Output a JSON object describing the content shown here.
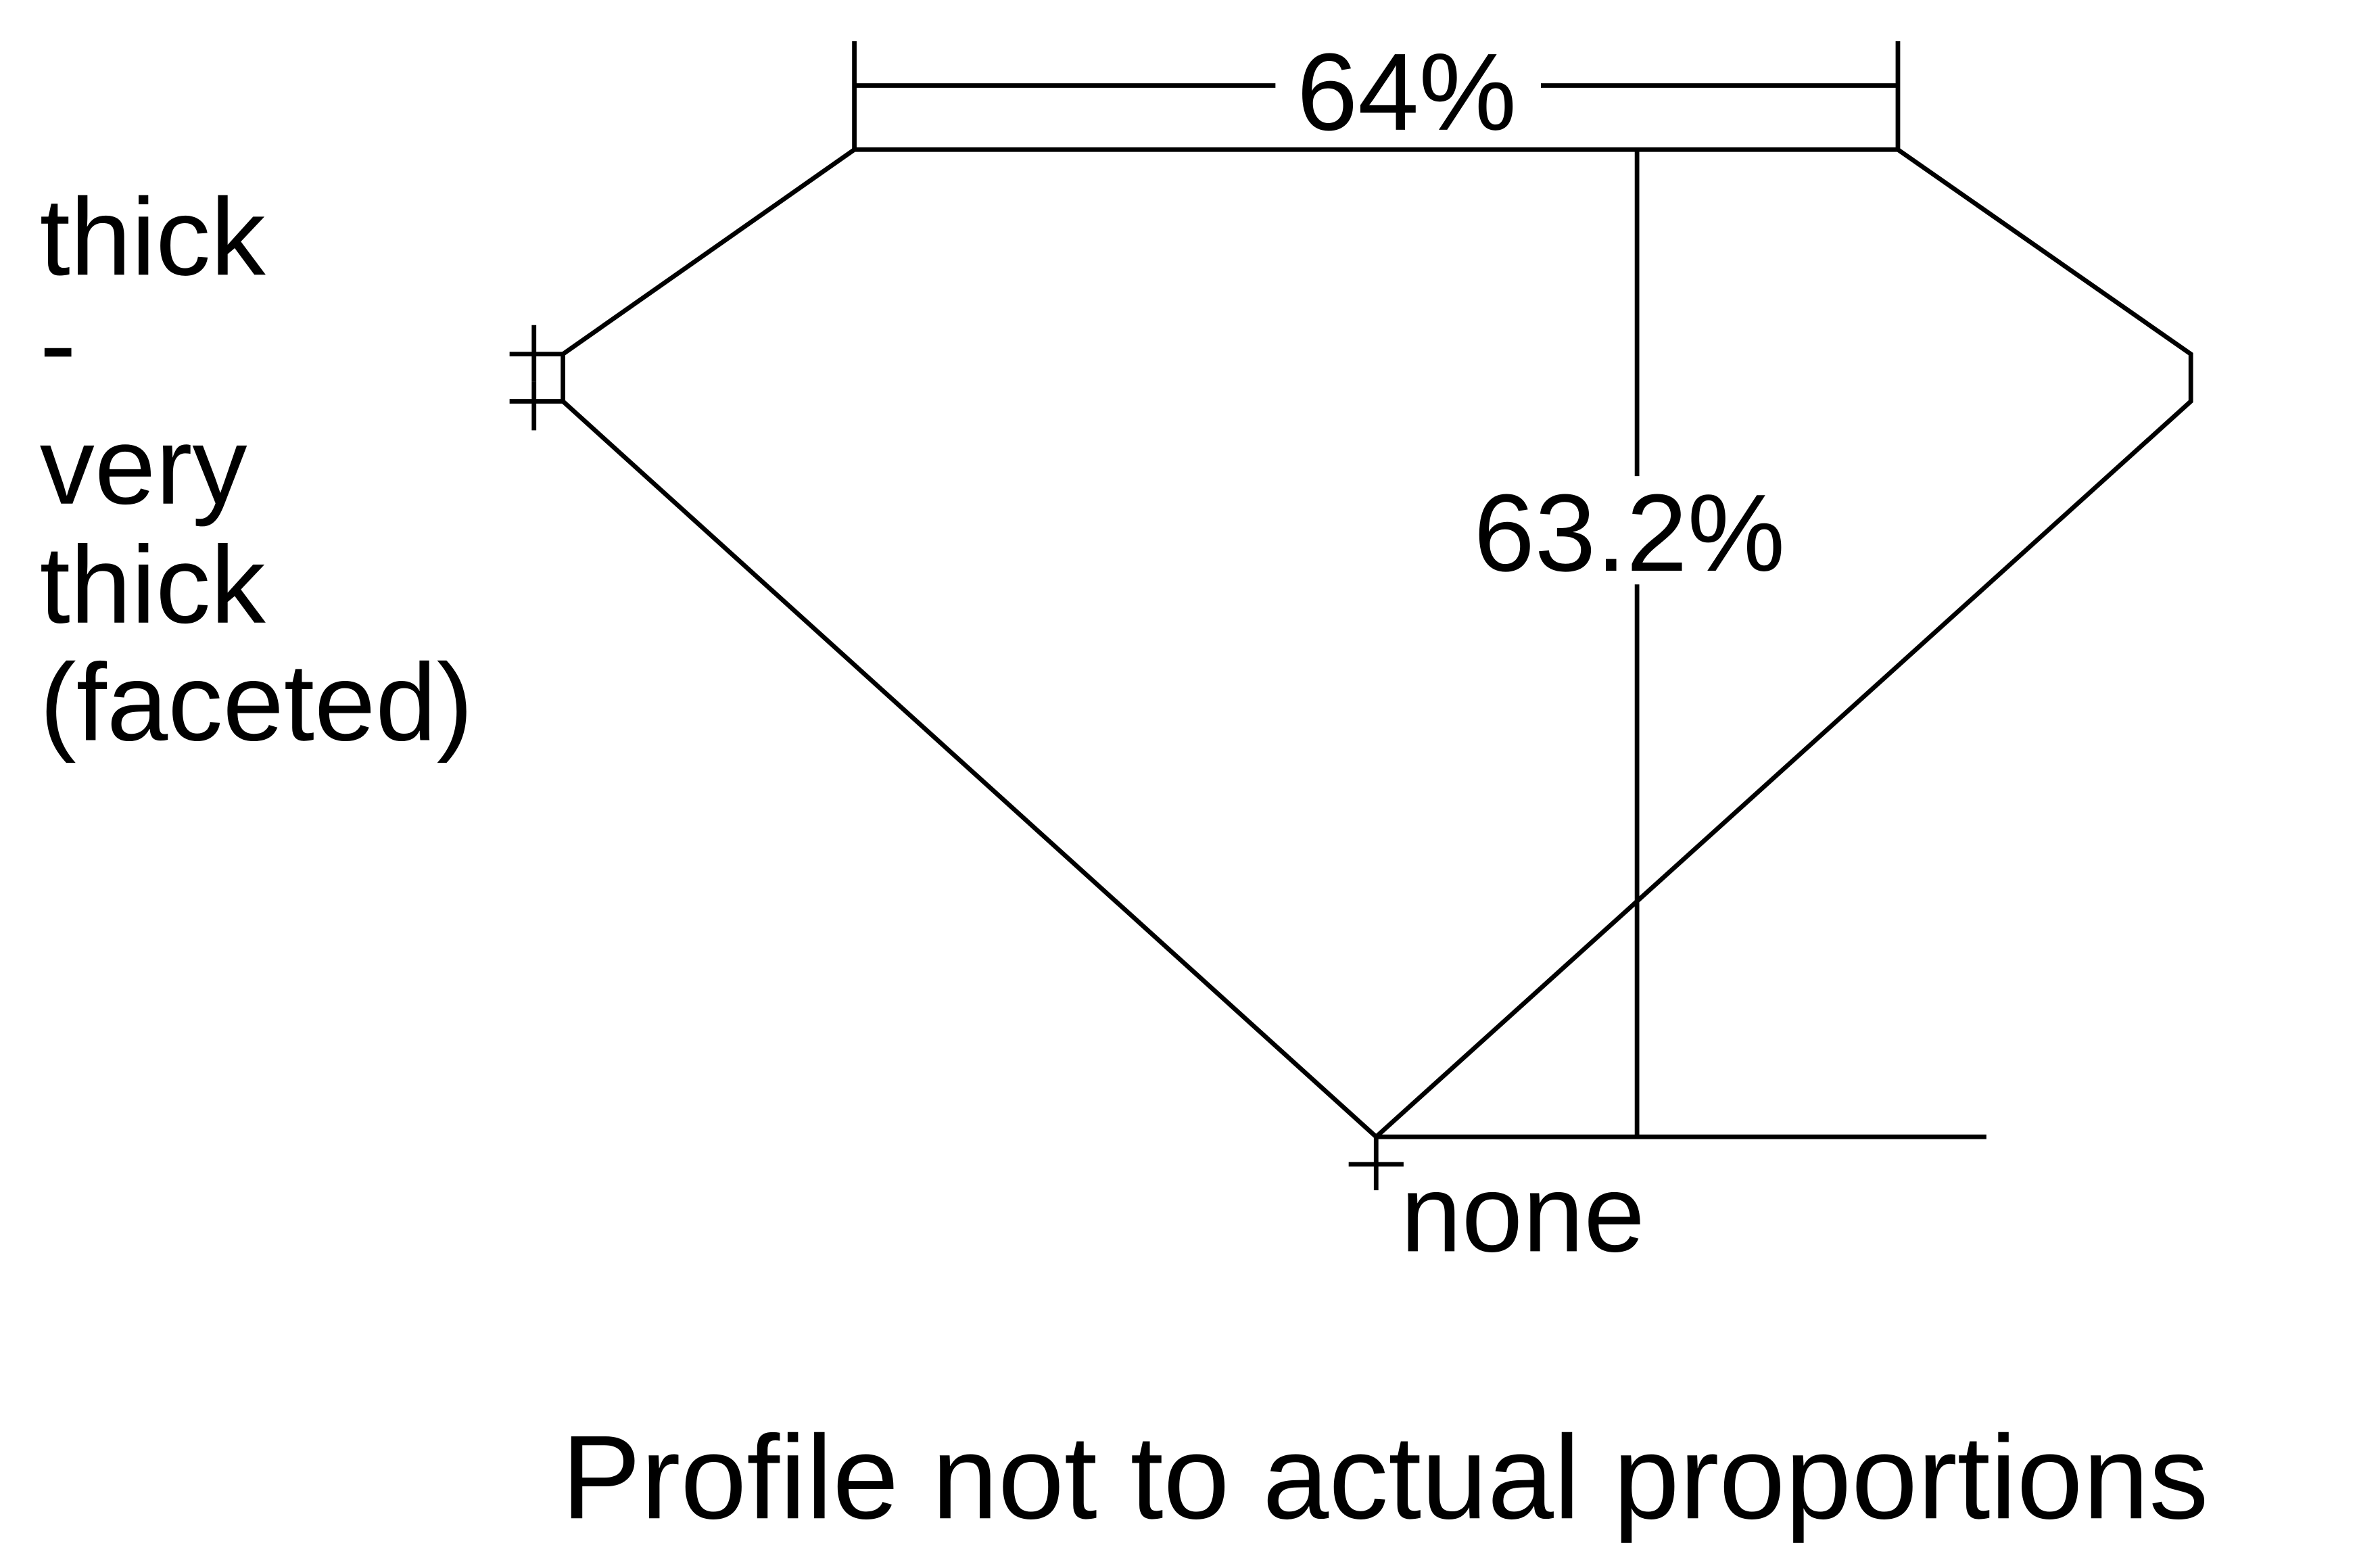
{
  "diagram": {
    "table_percent": "64%",
    "depth_percent": "63.2%",
    "girdle_label_lines": [
      "thick",
      "-",
      "very",
      "thick",
      "(faceted)"
    ],
    "culet_label": "none",
    "footnote": "Profile not to actual proportions",
    "line_color": "#000000",
    "background_color": "#ffffff"
  }
}
